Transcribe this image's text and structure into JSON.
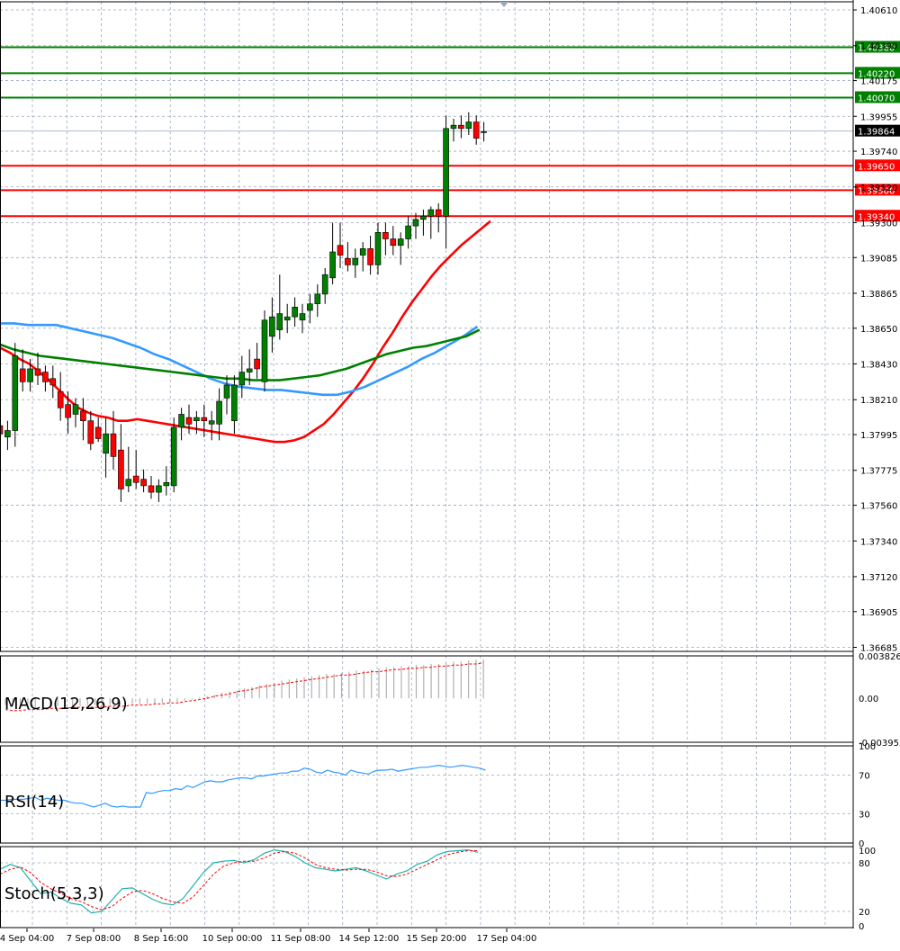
{
  "chart_data": {
    "type": "candlestick",
    "price_axis_ticks": [
      "1.40610",
      "1.40390",
      "1.40175",
      "1.39955",
      "1.39740",
      "1.39520",
      "1.39300",
      "1.39085",
      "1.38865",
      "1.38650",
      "1.38430",
      "1.38210",
      "1.37995",
      "1.37775",
      "1.37560",
      "1.37340",
      "1.37120",
      "1.36905",
      "1.36685"
    ],
    "price_range": [
      1.3666,
      1.4066
    ],
    "time_labels": [
      "4 Sep 04:00",
      "7 Sep 08:00",
      "8 Sep 16:00",
      "10 Sep 00:00",
      "11 Sep 08:00",
      "14 Sep 12:00",
      "15 Sep 20:00",
      "17 Sep 04:00"
    ],
    "current_price": {
      "label": "1.39864",
      "value": 1.39864
    },
    "resistance_levels": [
      {
        "label": "1.40380",
        "value": 1.4038,
        "color": "#008000"
      },
      {
        "label": "1.40220",
        "value": 1.4022,
        "color": "#008000"
      },
      {
        "label": "1.40070",
        "value": 1.4007,
        "color": "#008000"
      }
    ],
    "support_levels": [
      {
        "label": "1.39650",
        "value": 1.3965,
        "color": "#ff0000"
      },
      {
        "label": "1.39500",
        "value": 1.395,
        "color": "#ff0000"
      },
      {
        "label": "1.39340",
        "value": 1.3934,
        "color": "#ff0000"
      }
    ],
    "candles": [
      [
        1.3805,
        1.3812,
        1.3793,
        1.38
      ],
      [
        1.3798,
        1.3808,
        1.379,
        1.3802
      ],
      [
        1.3802,
        1.3856,
        1.3792,
        1.3848
      ],
      [
        1.384,
        1.3852,
        1.3826,
        1.3832
      ],
      [
        1.3832,
        1.3846,
        1.3826,
        1.384
      ],
      [
        1.384,
        1.385,
        1.383,
        1.3836
      ],
      [
        1.3838,
        1.3842,
        1.3826,
        1.3832
      ],
      [
        1.3834,
        1.3842,
        1.3822,
        1.383
      ],
      [
        1.3826,
        1.3838,
        1.3808,
        1.3816
      ],
      [
        1.3818,
        1.3826,
        1.38,
        1.381
      ],
      [
        1.3812,
        1.3822,
        1.3804,
        1.3818
      ],
      [
        1.3814,
        1.3822,
        1.3796,
        1.3808
      ],
      [
        1.3808,
        1.3814,
        1.379,
        1.3794
      ],
      [
        1.3804,
        1.381,
        1.3795,
        1.3797
      ],
      [
        1.3788,
        1.381,
        1.3773,
        1.38
      ],
      [
        1.38,
        1.3814,
        1.3778,
        1.3786
      ],
      [
        1.379,
        1.3806,
        1.3758,
        1.3766
      ],
      [
        1.3768,
        1.3792,
        1.3764,
        1.3772
      ],
      [
        1.3774,
        1.379,
        1.3766,
        1.377
      ],
      [
        1.3772,
        1.3778,
        1.3764,
        1.3768
      ],
      [
        1.3768,
        1.3774,
        1.376,
        1.3764
      ],
      [
        1.3764,
        1.3772,
        1.3758,
        1.3768
      ],
      [
        1.3768,
        1.378,
        1.3762,
        1.377
      ],
      [
        1.3768,
        1.381,
        1.3764,
        1.3804
      ],
      [
        1.3804,
        1.3816,
        1.3796,
        1.3812
      ],
      [
        1.381,
        1.3818,
        1.38,
        1.3806
      ],
      [
        1.3808,
        1.3814,
        1.38,
        1.381
      ],
      [
        1.381,
        1.3818,
        1.3798,
        1.3808
      ],
      [
        1.3806,
        1.3814,
        1.3796,
        1.3808
      ],
      [
        1.3806,
        1.3828,
        1.3796,
        1.382
      ],
      [
        1.3822,
        1.3836,
        1.3812,
        1.383
      ],
      [
        1.3808,
        1.3836,
        1.38,
        1.383
      ],
      [
        1.383,
        1.3848,
        1.3822,
        1.3838
      ],
      [
        1.3838,
        1.3852,
        1.383,
        1.384
      ],
      [
        1.3846,
        1.3856,
        1.3834,
        1.384
      ],
      [
        1.3832,
        1.3876,
        1.3826,
        1.387
      ],
      [
        1.386,
        1.3884,
        1.385,
        1.3872
      ],
      [
        1.3864,
        1.3898,
        1.3858,
        1.3874
      ],
      [
        1.387,
        1.388,
        1.3862,
        1.3872
      ],
      [
        1.3872,
        1.3884,
        1.3866,
        1.3878
      ],
      [
        1.387,
        1.388,
        1.3862,
        1.3874
      ],
      [
        1.3876,
        1.3886,
        1.3868,
        1.388
      ],
      [
        1.388,
        1.3892,
        1.3872,
        1.3886
      ],
      [
        1.3886,
        1.3902,
        1.388,
        1.3898
      ],
      [
        1.3896,
        1.393,
        1.3892,
        1.3912
      ],
      [
        1.3916,
        1.393,
        1.3902,
        1.391
      ],
      [
        1.3908,
        1.3918,
        1.39,
        1.3904
      ],
      [
        1.3904,
        1.3914,
        1.3896,
        1.3908
      ],
      [
        1.391,
        1.3918,
        1.39,
        1.3914
      ],
      [
        1.3914,
        1.3922,
        1.3898,
        1.3904
      ],
      [
        1.3904,
        1.393,
        1.3898,
        1.3924
      ],
      [
        1.3924,
        1.393,
        1.391,
        1.392
      ],
      [
        1.392,
        1.3928,
        1.391,
        1.3916
      ],
      [
        1.3916,
        1.3924,
        1.3904,
        1.392
      ],
      [
        1.392,
        1.3934,
        1.3914,
        1.3928
      ],
      [
        1.3928,
        1.3936,
        1.392,
        1.3932
      ],
      [
        1.3932,
        1.3938,
        1.3922,
        1.3934
      ],
      [
        1.3934,
        1.394,
        1.392,
        1.3938
      ],
      [
        1.3938,
        1.3942,
        1.3924,
        1.3934
      ],
      [
        1.3934,
        1.3996,
        1.3914,
        1.3988
      ],
      [
        1.3988,
        1.3994,
        1.398,
        1.399
      ],
      [
        1.399,
        1.3996,
        1.3982,
        1.3988
      ],
      [
        1.3988,
        1.3998,
        1.3984,
        1.3992
      ],
      [
        1.3992,
        1.3996,
        1.3978,
        1.3982
      ],
      [
        1.3986,
        1.3992,
        1.398,
        1.3986
      ]
    ],
    "moving_averages": [
      {
        "color": "#ff0000",
        "values": [
          1.3853,
          1.385,
          1.3846,
          1.3843,
          1.3838,
          1.3833,
          1.3827,
          1.3821,
          1.3816,
          1.3813,
          1.3811,
          1.381,
          1.3808,
          1.3808,
          1.3809,
          1.3808,
          1.3807,
          1.3806,
          1.3805,
          1.3804,
          1.3803,
          1.3802,
          1.3801,
          1.38,
          1.3799,
          1.3798,
          1.3797,
          1.3796,
          1.3795,
          1.3795,
          1.3796,
          1.3798,
          1.3802,
          1.3806,
          1.3812,
          1.3819,
          1.3826,
          1.3834,
          1.3843,
          1.3853,
          1.3862,
          1.3872,
          1.3881,
          1.3889,
          1.3897,
          1.3904,
          1.391,
          1.3916,
          1.3921,
          1.3926,
          1.3931
        ]
      },
      {
        "color": "#3399ff",
        "values": [
          1.3868,
          1.3868,
          1.3867,
          1.3867,
          1.3867,
          1.3865,
          1.3863,
          1.3861,
          1.3859,
          1.3856,
          1.3853,
          1.3849,
          1.3846,
          1.3842,
          1.3838,
          1.3834,
          1.3831,
          1.3829,
          1.3828,
          1.3827,
          1.3827,
          1.3826,
          1.3825,
          1.3824,
          1.3824,
          1.3826,
          1.3829,
          1.3833,
          1.3837,
          1.3841,
          1.3846,
          1.385,
          1.3855,
          1.386,
          1.3866
        ]
      },
      {
        "color": "#008000",
        "values": [
          1.3855,
          1.3852,
          1.385,
          1.3848,
          1.3847,
          1.3846,
          1.3845,
          1.3844,
          1.3843,
          1.3842,
          1.3841,
          1.384,
          1.3839,
          1.3838,
          1.3837,
          1.3836,
          1.3835,
          1.3834,
          1.3834,
          1.3833,
          1.3833,
          1.3833,
          1.3834,
          1.3835,
          1.3836,
          1.3838,
          1.384,
          1.3843,
          1.3846,
          1.3849,
          1.3851,
          1.3853,
          1.3854,
          1.3856,
          1.3858,
          1.386,
          1.3864
        ]
      }
    ],
    "macd": {
      "label": "MACD(12,26,9)",
      "ticks": [
        "0.003826",
        "0.00",
        "-0.003953"
      ],
      "range": [
        -0.003953,
        0.003826
      ],
      "histogram": [
        -0.0006,
        -0.0007,
        -0.0008,
        -0.0008,
        -0.0008,
        -0.0008,
        -0.0008,
        -0.0007,
        -0.0007,
        -0.0007,
        -0.0007,
        -0.0006,
        -0.0006,
        -0.0006,
        -0.0006,
        -0.0005,
        -0.0005,
        -0.0005,
        -0.0005,
        -0.0005,
        -0.0005,
        -0.0004,
        -0.0004,
        -0.0003,
        -0.0002,
        -0.0001,
        0.0001,
        0.0002,
        0.0003,
        0.0005,
        0.0006,
        0.0007,
        0.0009,
        0.001,
        0.0012,
        0.0013,
        0.0014,
        0.0016,
        0.0017,
        0.0018,
        0.0019,
        0.002,
        0.0021,
        0.0022,
        0.0022,
        0.0023,
        0.0024,
        0.0025,
        0.0025,
        0.0026,
        0.0027,
        0.0028,
        0.0028,
        0.0029,
        0.0029,
        0.003,
        0.003,
        0.0031,
        0.0031,
        0.0032,
        0.0033,
        0.0033,
        0.0034,
        0.0035,
        0.0035
      ],
      "signal": [
        -0.001,
        -0.0011,
        -0.0011,
        -0.001,
        -0.001,
        -0.001,
        -0.0009,
        -0.0009,
        -0.0009,
        -0.0008,
        -0.0008,
        -0.0008,
        -0.0008,
        -0.0008,
        -0.0007,
        -0.0007,
        -0.0007,
        -0.0006,
        -0.0006,
        -0.0006,
        -0.0005,
        -0.0005,
        -0.0004,
        -0.0004,
        -0.0003,
        -0.0002,
        -0.0001,
        0.0,
        0.0002,
        0.0003,
        0.0004,
        0.0006,
        0.0007,
        0.0008,
        0.001,
        0.0011,
        0.0012,
        0.0013,
        0.0014,
        0.0015,
        0.0016,
        0.0017,
        0.0018,
        0.0019,
        0.002,
        0.0021,
        0.0021,
        0.0022,
        0.0023,
        0.0024,
        0.0024,
        0.0025,
        0.0026,
        0.0026,
        0.0027,
        0.0027,
        0.0028,
        0.0028,
        0.0029,
        0.0029,
        0.003,
        0.003,
        0.0031,
        0.0031,
        0.0032
      ]
    },
    "rsi": {
      "label": "RSI(14)",
      "ticks": [
        "100",
        "70",
        "30",
        "0"
      ],
      "range": [
        0,
        100
      ],
      "levels": [
        70,
        30
      ],
      "values": [
        44,
        44,
        45,
        45,
        45,
        46,
        47,
        44,
        46,
        45,
        44,
        44,
        42,
        41,
        41,
        39,
        37,
        39,
        41,
        38,
        37,
        38,
        37,
        37,
        37,
        52,
        51,
        53,
        54,
        54,
        56,
        55,
        59,
        57,
        60,
        63,
        64,
        63,
        63,
        65,
        66,
        67,
        67,
        66,
        69,
        69,
        70,
        71,
        72,
        72,
        74,
        74,
        77,
        76,
        73,
        72,
        75,
        73,
        72,
        70,
        75,
        73,
        72,
        71,
        74,
        75,
        75,
        76,
        74,
        75,
        76,
        77,
        78,
        78,
        79,
        80,
        79,
        78,
        79,
        80,
        79,
        78,
        77,
        75
      ]
    },
    "stochastic": {
      "label": "Stoch(5,3,3)",
      "ticks": [
        "100",
        "80",
        "20",
        "0"
      ],
      "range": [
        0,
        100
      ],
      "levels": [
        80,
        20
      ],
      "main": [
        72,
        78,
        74,
        58,
        42,
        44,
        36,
        30,
        28,
        18,
        20,
        34,
        48,
        49,
        42,
        35,
        30,
        28,
        36,
        52,
        68,
        80,
        82,
        83,
        80,
        84,
        92,
        96,
        94,
        88,
        80,
        74,
        72,
        70,
        72,
        74,
        70,
        65,
        60,
        66,
        70,
        78,
        82,
        90,
        94,
        95,
        96,
        93
      ],
      "signal": [
        66,
        72,
        75,
        68,
        56,
        48,
        42,
        36,
        32,
        26,
        22,
        26,
        36,
        44,
        46,
        42,
        36,
        32,
        30,
        38,
        52,
        66,
        76,
        80,
        82,
        82,
        86,
        92,
        94,
        92,
        86,
        78,
        74,
        72,
        71,
        72,
        72,
        69,
        64,
        63,
        66,
        72,
        78,
        84,
        90,
        93,
        95,
        95
      ]
    }
  }
}
